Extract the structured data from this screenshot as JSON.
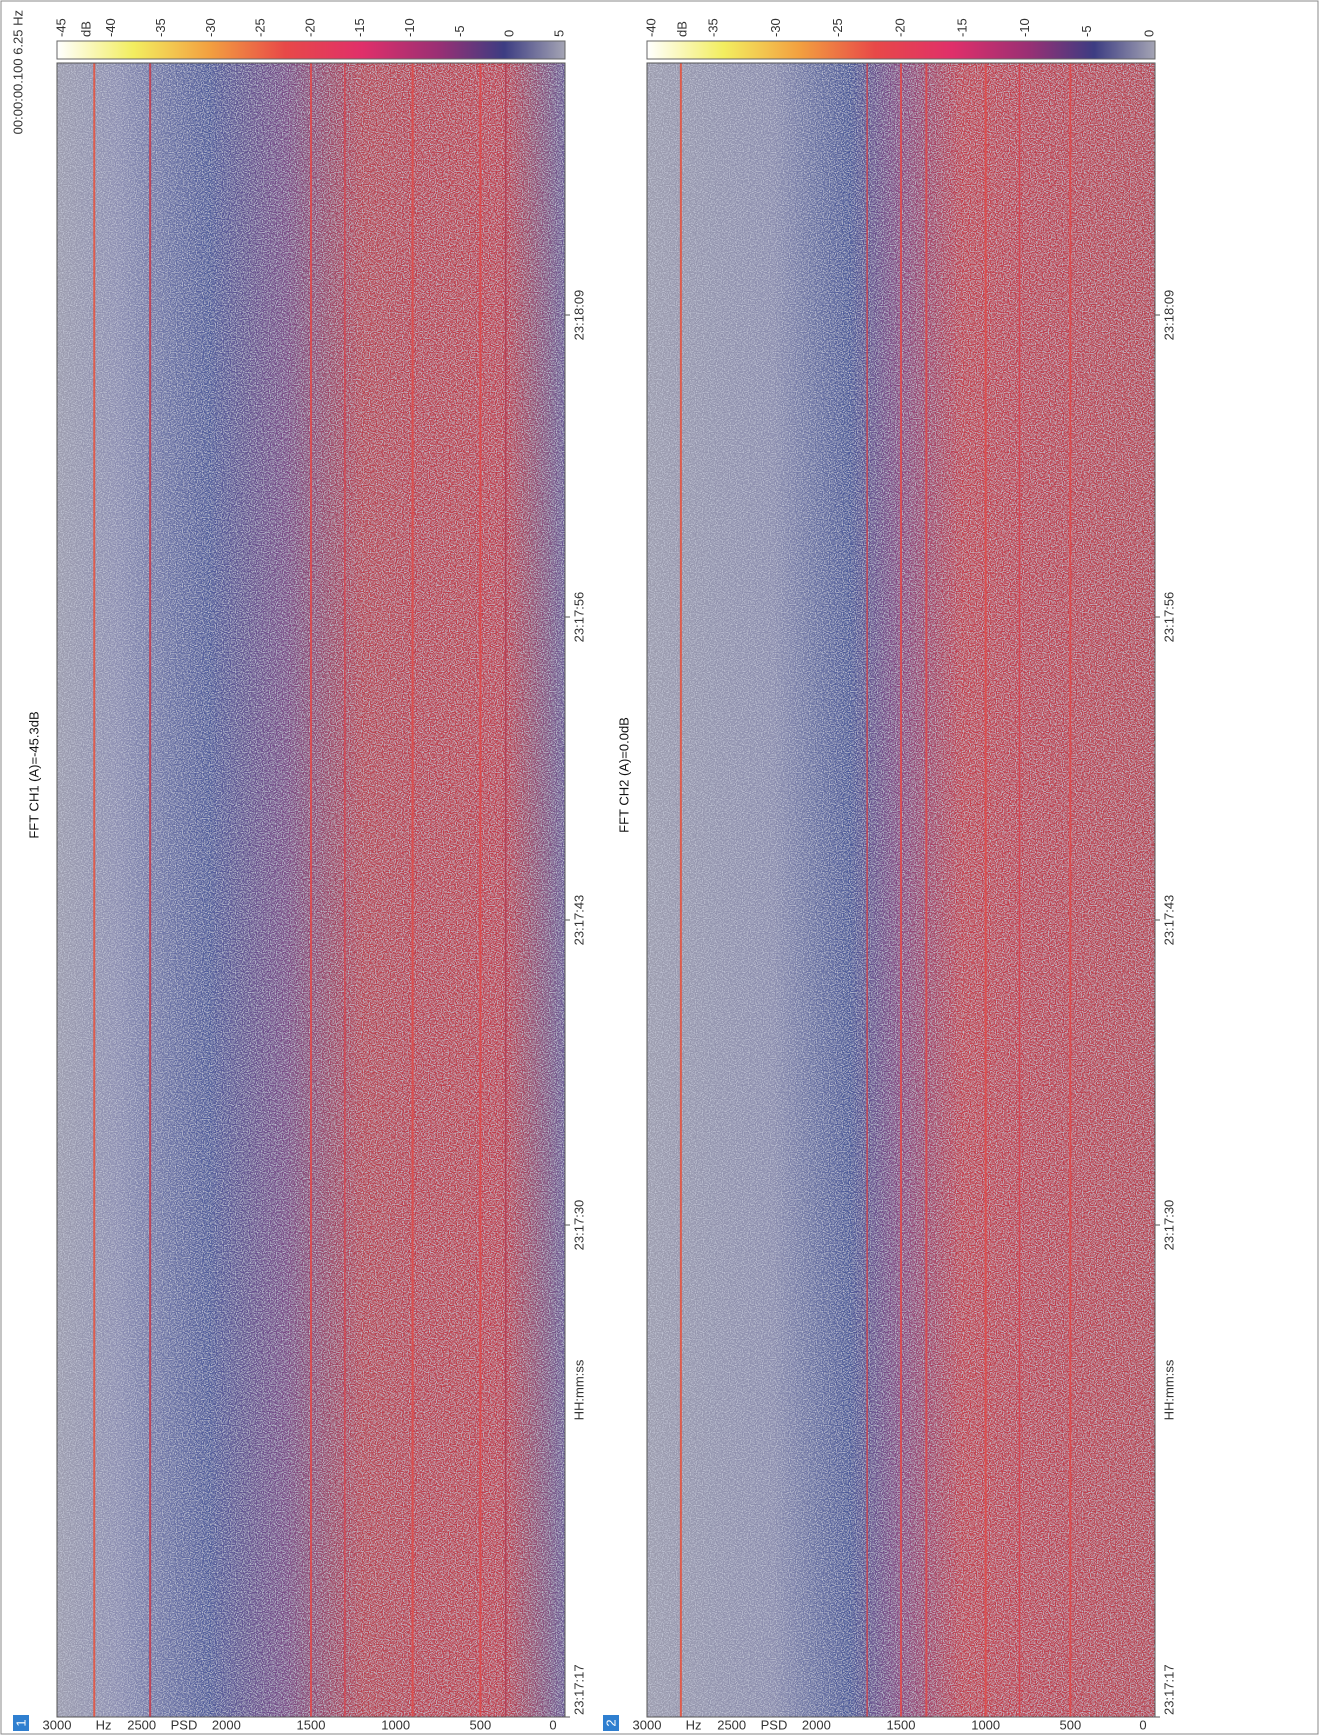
{
  "panels": [
    {
      "number": "1",
      "title": "FFT CH1 (A)=-45.3dB",
      "info": "00:00:00.100  6.25 Hz",
      "colorbar": {
        "unit": "dB",
        "labels": [
          "-45",
          "-40",
          "-35",
          "-30",
          "-25",
          "-20",
          "-15",
          "-10",
          "-5",
          "0",
          "5"
        ]
      },
      "frequency_axis": {
        "unit": "Hz",
        "label": "PSD",
        "ticks": [
          "3000",
          "2500",
          "2000",
          "1500",
          "1000",
          "500",
          "0"
        ]
      },
      "time_axis": {
        "label": "HH:mm:ss",
        "ticks": [
          "23:17:17",
          "23:17:30",
          "23:17:43",
          "23:17:56",
          "23:18:09"
        ]
      }
    },
    {
      "number": "2",
      "title": "FFT CH2 (A)=0.0dB",
      "colorbar": {
        "unit": "dB",
        "labels": [
          "-40",
          "-35",
          "-30",
          "-25",
          "-20",
          "-15",
          "-10",
          "-5",
          "0"
        ]
      },
      "frequency_axis": {
        "unit": "Hz",
        "label": "PSD",
        "ticks": [
          "3000",
          "2500",
          "2000",
          "1500",
          "1000",
          "500",
          "0"
        ]
      },
      "time_axis": {
        "label": "HH:mm:ss",
        "ticks": [
          "23:17:17",
          "23:17:30",
          "23:17:43",
          "23:17:56",
          "23:18:09"
        ]
      }
    }
  ]
}
